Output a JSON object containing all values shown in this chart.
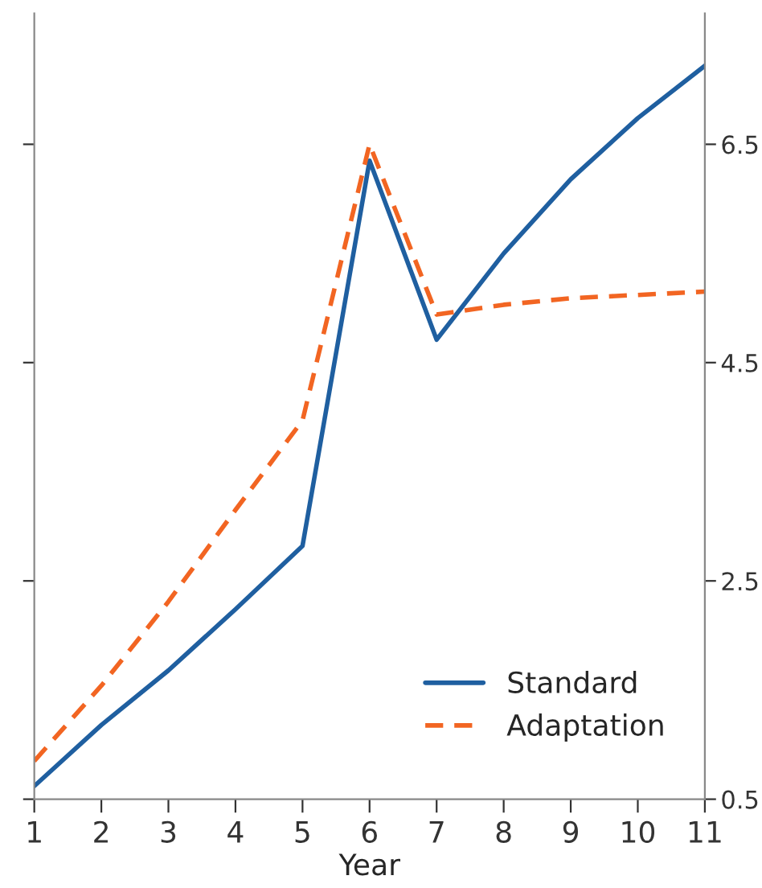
{
  "chart_data": {
    "type": "line",
    "xlabel": "Year",
    "x": [
      1,
      2,
      3,
      4,
      5,
      6,
      7,
      8,
      9,
      10,
      11
    ],
    "series": [
      {
        "name": "Standard",
        "color": "#1f5fa0",
        "line_style": "solid",
        "values": [
          0.62,
          1.18,
          1.68,
          2.24,
          2.82,
          6.35,
          4.71,
          5.5,
          6.18,
          6.74,
          7.22
        ]
      },
      {
        "name": "Adaptation",
        "color": "#f26522",
        "line_style": "dashed",
        "values": [
          0.85,
          1.54,
          2.31,
          3.15,
          3.97,
          6.5,
          4.94,
          5.03,
          5.09,
          5.12,
          5.15
        ]
      }
    ],
    "xlim": [
      1,
      11
    ],
    "xticks": [
      1,
      2,
      3,
      4,
      5,
      6,
      7,
      8,
      9,
      10,
      11
    ],
    "ylim": [
      0.5,
      7.7
    ],
    "yticks": [
      0.5,
      2.5,
      4.5,
      6.5
    ],
    "grid": false,
    "legend": "bottom right",
    "marker": "none"
  }
}
